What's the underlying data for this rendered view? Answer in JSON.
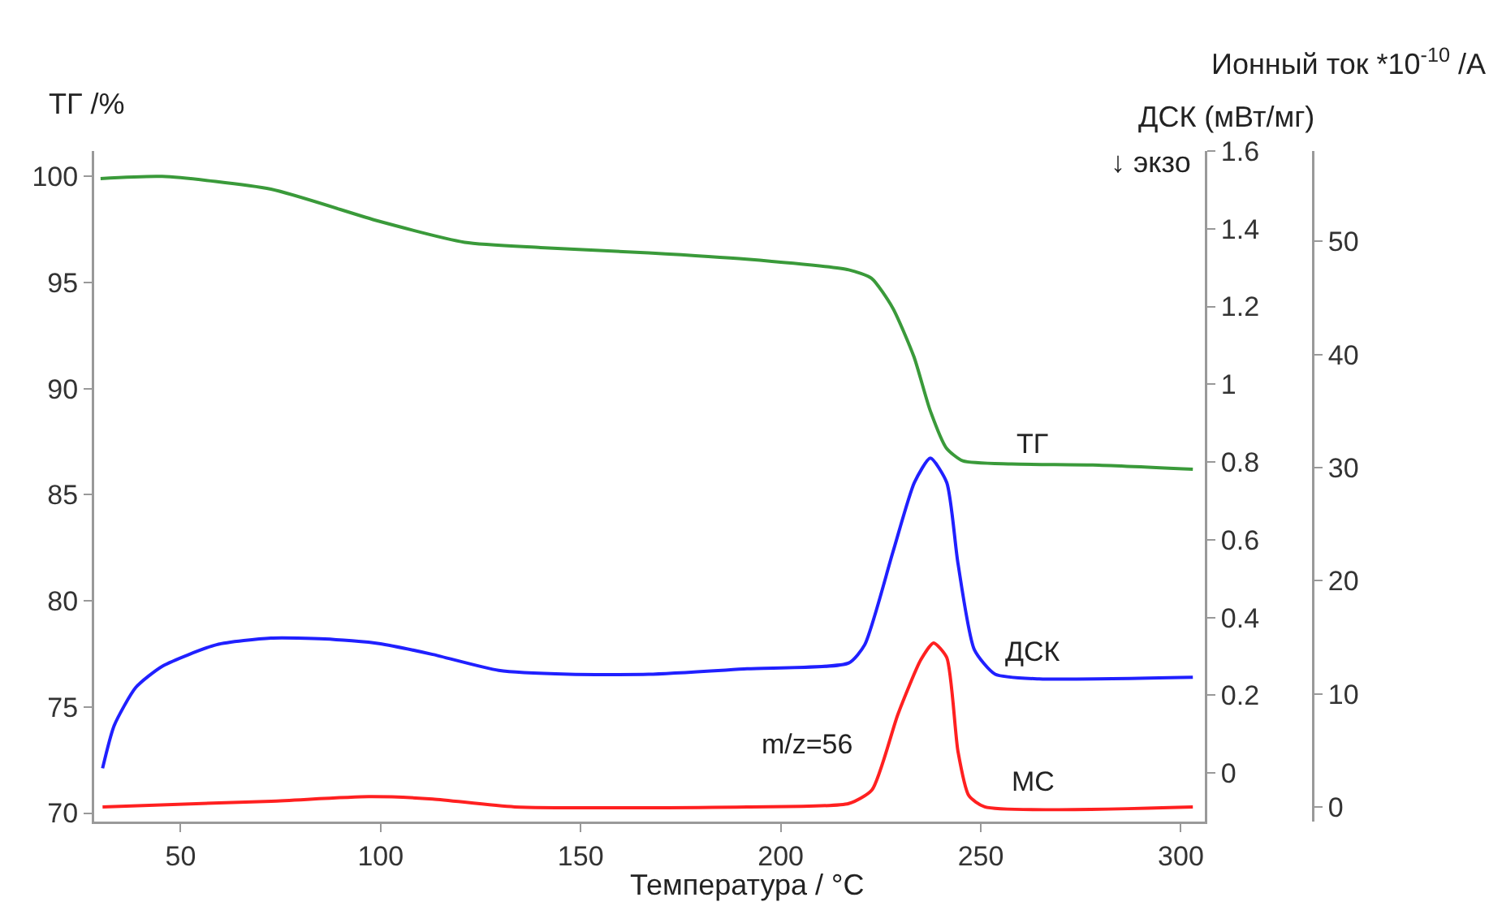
{
  "chart_data": {
    "type": "line",
    "xlabel": "Температура / °C",
    "ylabel": "ТГ /%",
    "y2label": "ДСК (мВт/мг)",
    "y3label": "Ионный ток *10$^{-10}$ /A",
    "xlim": [
      28.4,
      306
    ],
    "xticks": [
      50,
      100,
      150,
      200,
      250,
      300
    ],
    "ylim": [
      69.6,
      101.2
    ],
    "yticks": [
      70,
      75,
      80,
      85,
      90,
      95,
      100
    ],
    "y2lim": [
      -0.125,
      1.6
    ],
    "y2ticks": [
      0,
      0.2,
      0.4,
      0.6,
      0.8,
      1,
      1.2,
      1.4,
      1.6
    ],
    "y3lim": [
      -1.3,
      58
    ],
    "y3ticks": [
      0,
      10,
      20,
      30,
      40,
      50
    ],
    "grid": false,
    "legend": false,
    "annotations": [
      "↓ экзо",
      "m/z=56"
    ],
    "series": [
      {
        "name": "ТГ",
        "color": "#3a9a3a",
        "x": [
          30,
          45.4,
          72.6,
          99.4,
          121,
          140,
          167,
          191.5,
          217,
          222.7,
          228,
          233.3,
          237.3,
          241.4,
          245.5,
          257.7,
          278,
          303
        ],
        "values": [
          99.9,
          100,
          99.4,
          97.9,
          96.9,
          96.65,
          96.4,
          96.1,
          95.6,
          95.2,
          93.8,
          91.5,
          89.0,
          87.2,
          86.6,
          86.45,
          86.4,
          86.2
        ]
      },
      {
        "name": "ДСК",
        "color": "#2020ff",
        "axis": "y2",
        "x": [
          30.5,
          33.4,
          38.8,
          45.5,
          59,
          72.6,
          86,
          99.6,
          113,
          129.5,
          147,
          167,
          191.6,
          217,
          221,
          228,
          233.4,
          237.4,
          241.5,
          244.3,
          248.4,
          253.6,
          264.6,
          303
        ],
        "values": [
          0.012,
          0.122,
          0.22,
          0.275,
          0.33,
          0.347,
          0.345,
          0.333,
          0.305,
          0.264,
          0.254,
          0.254,
          0.268,
          0.283,
          0.33,
          0.567,
          0.747,
          0.81,
          0.747,
          0.539,
          0.317,
          0.254,
          0.242,
          0.246
        ]
      },
      {
        "name": "МС",
        "color": "#ff2020",
        "axis": "y3",
        "x": [
          30.5,
          72.7,
          97,
          113,
          133.5,
          191.6,
          217,
          222.8,
          229.3,
          235,
          238.2,
          241.5,
          244.3,
          247,
          251,
          303
        ],
        "values": [
          0,
          0.5,
          0.9,
          0.7,
          0,
          0,
          0.3,
          1.5,
          8.2,
          13.0,
          14.5,
          13.2,
          4.9,
          1.0,
          0,
          0
        ]
      }
    ]
  }
}
